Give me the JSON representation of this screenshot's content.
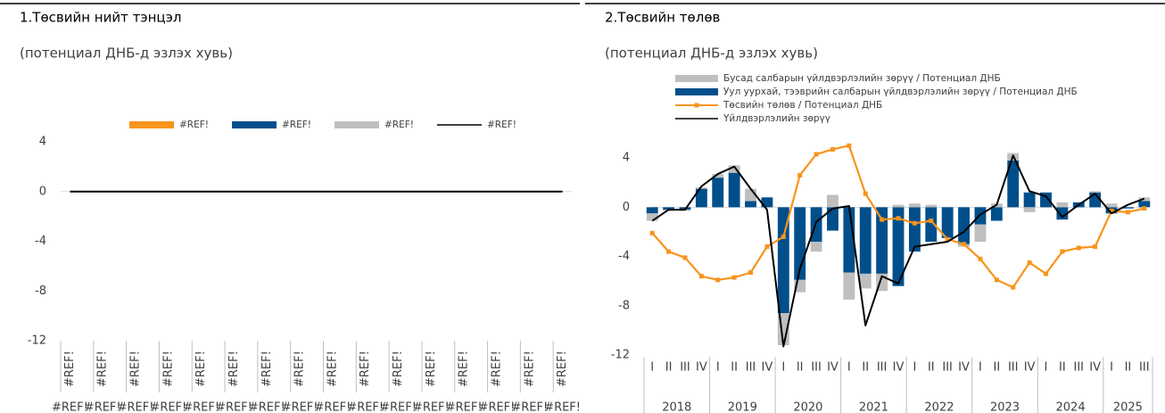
{
  "chart_data": [
    {
      "type": "combo",
      "title": "1.Төсвийн нийт тэнцэл",
      "subtitle": "(потенциал ДНБ-д эзлэх хувь)",
      "categories": [
        "#REF!",
        "#REF!",
        "#REF!",
        "#REF!",
        "#REF!",
        "#REF!",
        "#REF!",
        "#REF!",
        "#REF!",
        "#REF!",
        "#REF!",
        "#REF!",
        "#REF!",
        "#REF!",
        "#REF!",
        "#REF!"
      ],
      "groups": [
        "#REF!",
        "#REF!",
        "#REF!",
        "#REF!",
        "#REF!",
        "#REF!",
        "#REF!",
        "#REF!",
        "#REF!",
        "#REF!",
        "#REF!",
        "#REF!",
        "#REF!",
        "#REF!",
        "#REF!",
        "#REF!"
      ],
      "series": [
        {
          "name": "#REF!",
          "type": "bar",
          "color": "#f7941d",
          "values": [
            null,
            null,
            null,
            null,
            null,
            null,
            null,
            null,
            null,
            null,
            null,
            null,
            null,
            null,
            null,
            null
          ]
        },
        {
          "name": "#REF!",
          "type": "bar",
          "color": "#004f8b",
          "values": [
            null,
            null,
            null,
            null,
            null,
            null,
            null,
            null,
            null,
            null,
            null,
            null,
            null,
            null,
            null,
            null
          ]
        },
        {
          "name": "#REF!",
          "type": "bar",
          "color": "#bfbfbf",
          "values": [
            null,
            null,
            null,
            null,
            null,
            null,
            null,
            null,
            null,
            null,
            null,
            null,
            null,
            null,
            null,
            null
          ]
        },
        {
          "name": "#REF!",
          "type": "line",
          "color": "#000000",
          "values": [
            0,
            0,
            0,
            0,
            0,
            0,
            0,
            0,
            0,
            0,
            0,
            0,
            0,
            0,
            0,
            0
          ]
        }
      ],
      "ylim": [
        -12,
        4
      ],
      "yticks": [
        -12,
        -8,
        -4,
        0,
        4
      ],
      "legend": "top"
    },
    {
      "type": "combo",
      "title": "2.Төсвийн төлөв",
      "subtitle": "(потенциал ДНБ-д эзлэх хувь)",
      "categories": [
        "I",
        "II",
        "III",
        "IV",
        "I",
        "II",
        "III",
        "IV",
        "I",
        "II",
        "III",
        "IV",
        "I",
        "II",
        "III",
        "IV",
        "I",
        "II",
        "III",
        "IV",
        "I",
        "II",
        "III",
        "IV",
        "I",
        "II",
        "III",
        "IV",
        "I",
        "II",
        "III"
      ],
      "years": [
        "2018",
        "2019",
        "2020",
        "2021",
        "2022",
        "2023",
        "2024",
        "2025"
      ],
      "series": [
        {
          "name": "Бусад салбарын үйлдвэрлэлийн зөрүү / Потенциал ДНБ",
          "type": "bar",
          "color": "#bfbfbf",
          "values": [
            -0.6,
            -0.1,
            -0.1,
            0.1,
            0.3,
            0.6,
            1.0,
            0.0,
            -2.6,
            -1.0,
            -0.8,
            1.0,
            -2.2,
            -1.2,
            -1.4,
            0.2,
            0.3,
            0.2,
            0.0,
            -0.2,
            -1.4,
            0.3,
            0.6,
            -0.4,
            0.0,
            0.4,
            0.0,
            0.1,
            0.3,
            0.0,
            0.3
          ]
        },
        {
          "name": "Уул уурхай, тээврийн салбарын үйлдвэрлэлийн зөрүү / Потенциал ДНБ",
          "type": "bar",
          "color": "#004f8b",
          "values": [
            -0.5,
            -0.2,
            -0.2,
            1.5,
            2.4,
            2.8,
            0.5,
            0.8,
            -8.6,
            -5.9,
            -2.8,
            -1.9,
            -5.3,
            -5.4,
            -5.4,
            -6.4,
            -3.6,
            -2.8,
            -2.5,
            -3.0,
            -1.4,
            -1.1,
            3.8,
            1.2,
            1.2,
            -1.0,
            0.4,
            1.2,
            -0.5,
            -0.1,
            0.5
          ]
        },
        {
          "name": "Төсвийн төлөв / Потенциал ДНБ",
          "type": "line",
          "marker": true,
          "color": "#f7941d",
          "values": [
            -2.1,
            -3.6,
            -4.1,
            -5.6,
            -5.9,
            -5.7,
            -5.3,
            -3.2,
            -2.4,
            2.6,
            4.3,
            4.7,
            5.0,
            1.1,
            -1.0,
            -0.9,
            -1.3,
            -1.1,
            -2.6,
            -3.0,
            -4.2,
            -5.9,
            -6.5,
            -4.5,
            -5.4,
            -3.6,
            -3.3,
            -3.2,
            -0.3,
            -0.4,
            -0.1
          ]
        },
        {
          "name": "Үйлдвэрлэлийн зөрүү",
          "type": "line",
          "color": "#000000",
          "values": [
            -1.1,
            -0.2,
            -0.2,
            1.7,
            2.7,
            3.3,
            1.5,
            -0.2,
            -11.3,
            -5.0,
            -1.2,
            -0.1,
            0.1,
            -9.6,
            -5.6,
            -6.2,
            -3.2,
            -3.0,
            -2.8,
            -2.0,
            -0.6,
            0.2,
            4.2,
            1.3,
            0.9,
            -0.8,
            0.2,
            1.1,
            -0.5,
            0.2,
            0.7
          ]
        }
      ],
      "ylim": [
        -12,
        6
      ],
      "yticks": [
        -12,
        -8,
        -4,
        0,
        4
      ],
      "legend": "top-left"
    }
  ]
}
